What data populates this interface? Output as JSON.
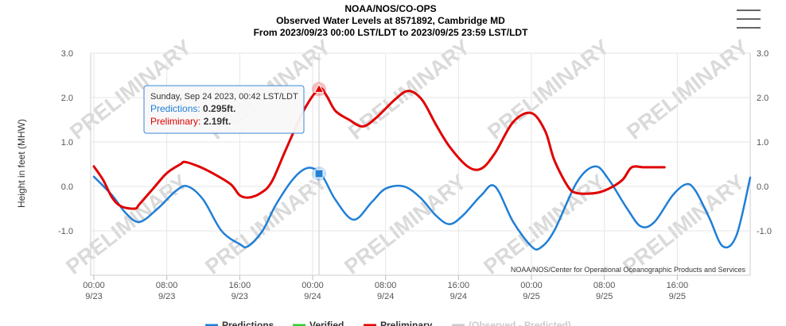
{
  "header": {
    "line1": "NOAA/NOS/CO-OPS",
    "line2": "Observed Water Levels at 8571892, Cambridge MD",
    "line3": "From 2023/09/23 00:00 LST/LDT to 2023/09/25 23:59 LST/LDT"
  },
  "menu": {
    "icon": "hamburger-menu-icon"
  },
  "watermark_text": "PRELIMINARY",
  "credit": "NOAA/NOS/Center for Operational Oceanographic Products and Services",
  "tooltip": {
    "title": "Sunday, Sep 24 2023, 00:42 LST/LDT",
    "predictions_label": "Predictions: ",
    "predictions_value": "0.295ft.",
    "preliminary_label": "Preliminary: ",
    "preliminary_value": "2.19ft."
  },
  "legend": [
    {
      "name": "Predictions",
      "color": "#1f7fd6"
    },
    {
      "name": "Verified",
      "color": "#33cc33"
    },
    {
      "name": "Preliminary",
      "color": "#e00000"
    },
    {
      "name": "(Observed - Predicted)",
      "color": "#cccccc"
    }
  ],
  "chart_data": {
    "type": "line",
    "ylabel": "Height in feet (MHW)",
    "ylim": [
      -2.0,
      3.0
    ],
    "y_ticks": [
      "3.0",
      "2.0",
      "1.0",
      "0.0",
      "-1.0"
    ],
    "y_tick_values": [
      3,
      2,
      1,
      0,
      -1
    ],
    "xlim_hours": [
      0,
      72
    ],
    "x_ticks": [
      {
        "time": "00:00",
        "date": "9/23",
        "hour": 0
      },
      {
        "time": "08:00",
        "date": "9/23",
        "hour": 8
      },
      {
        "time": "16:00",
        "date": "9/23",
        "hour": 16
      },
      {
        "time": "00:00",
        "date": "9/24",
        "hour": 24
      },
      {
        "time": "08:00",
        "date": "9/24",
        "hour": 32
      },
      {
        "time": "16:00",
        "date": "9/24",
        "hour": 40
      },
      {
        "time": "00:00",
        "date": "9/25",
        "hour": 48
      },
      {
        "time": "08:00",
        "date": "9/25",
        "hour": 56
      },
      {
        "time": "16:00",
        "date": "9/25",
        "hour": 64
      }
    ],
    "hover_hour": 24.7,
    "series": [
      {
        "name": "Predictions",
        "color": "#1f7fd6",
        "x": [
          0.0,
          2.0,
          3.5,
          5.0,
          7.0,
          9.0,
          10.3,
          12.0,
          14.0,
          16.0,
          16.9,
          18.5,
          20.0,
          22.0,
          23.6,
          25.0,
          26.5,
          28.5,
          30.5,
          32.0,
          34.0,
          35.8,
          37.5,
          39.0,
          40.5,
          42.5,
          44.0,
          46.0,
          48.0,
          49.0,
          50.5,
          53.0,
          55.0,
          56.5,
          58.5,
          60.0,
          61.5,
          63.5,
          65.0,
          66.0,
          67.5,
          69.0,
          70.5,
          72.0
        ],
        "y": [
          0.22,
          -0.2,
          -0.6,
          -0.8,
          -0.5,
          -0.1,
          0.0,
          -0.3,
          -1.0,
          -1.3,
          -1.35,
          -1.0,
          -0.4,
          0.2,
          0.42,
          0.25,
          -0.3,
          -0.75,
          -0.35,
          -0.05,
          0.0,
          -0.25,
          -0.65,
          -0.85,
          -0.65,
          -0.2,
          0.0,
          -0.8,
          -1.35,
          -1.38,
          -1.0,
          0.1,
          0.45,
          0.15,
          -0.5,
          -0.9,
          -0.8,
          -0.2,
          0.05,
          -0.1,
          -0.7,
          -1.35,
          -1.1,
          0.2
        ]
      },
      {
        "name": "Preliminary",
        "color": "#e00000",
        "x": [
          0.0,
          1.0,
          2.0,
          3.0,
          4.5,
          5.0,
          6.5,
          8.0,
          9.5,
          10.0,
          11.5,
          13.0,
          15.0,
          16.0,
          17.0,
          18.3,
          19.5,
          21.0,
          23.0,
          24.7,
          25.5,
          26.5,
          28.0,
          29.5,
          31.0,
          33.0,
          34.5,
          36.0,
          37.5,
          39.0,
          41.0,
          42.5,
          44.0,
          46.0,
          48.0,
          49.5,
          50.5,
          52.0,
          53.0,
          55.0,
          56.5,
          58.0,
          59.0,
          60.3,
          61.5,
          62.6
        ],
        "y": [
          0.45,
          0.15,
          -0.25,
          -0.45,
          -0.5,
          -0.4,
          -0.05,
          0.3,
          0.5,
          0.55,
          0.45,
          0.3,
          0.05,
          -0.2,
          -0.25,
          -0.15,
          0.1,
          0.8,
          1.7,
          2.19,
          2.05,
          1.7,
          1.5,
          1.35,
          1.55,
          1.95,
          2.15,
          1.95,
          1.4,
          0.9,
          0.45,
          0.4,
          0.75,
          1.45,
          1.65,
          1.25,
          0.6,
          0.0,
          -0.15,
          -0.15,
          -0.05,
          0.15,
          0.43,
          0.43,
          0.43,
          0.43
        ]
      }
    ]
  }
}
